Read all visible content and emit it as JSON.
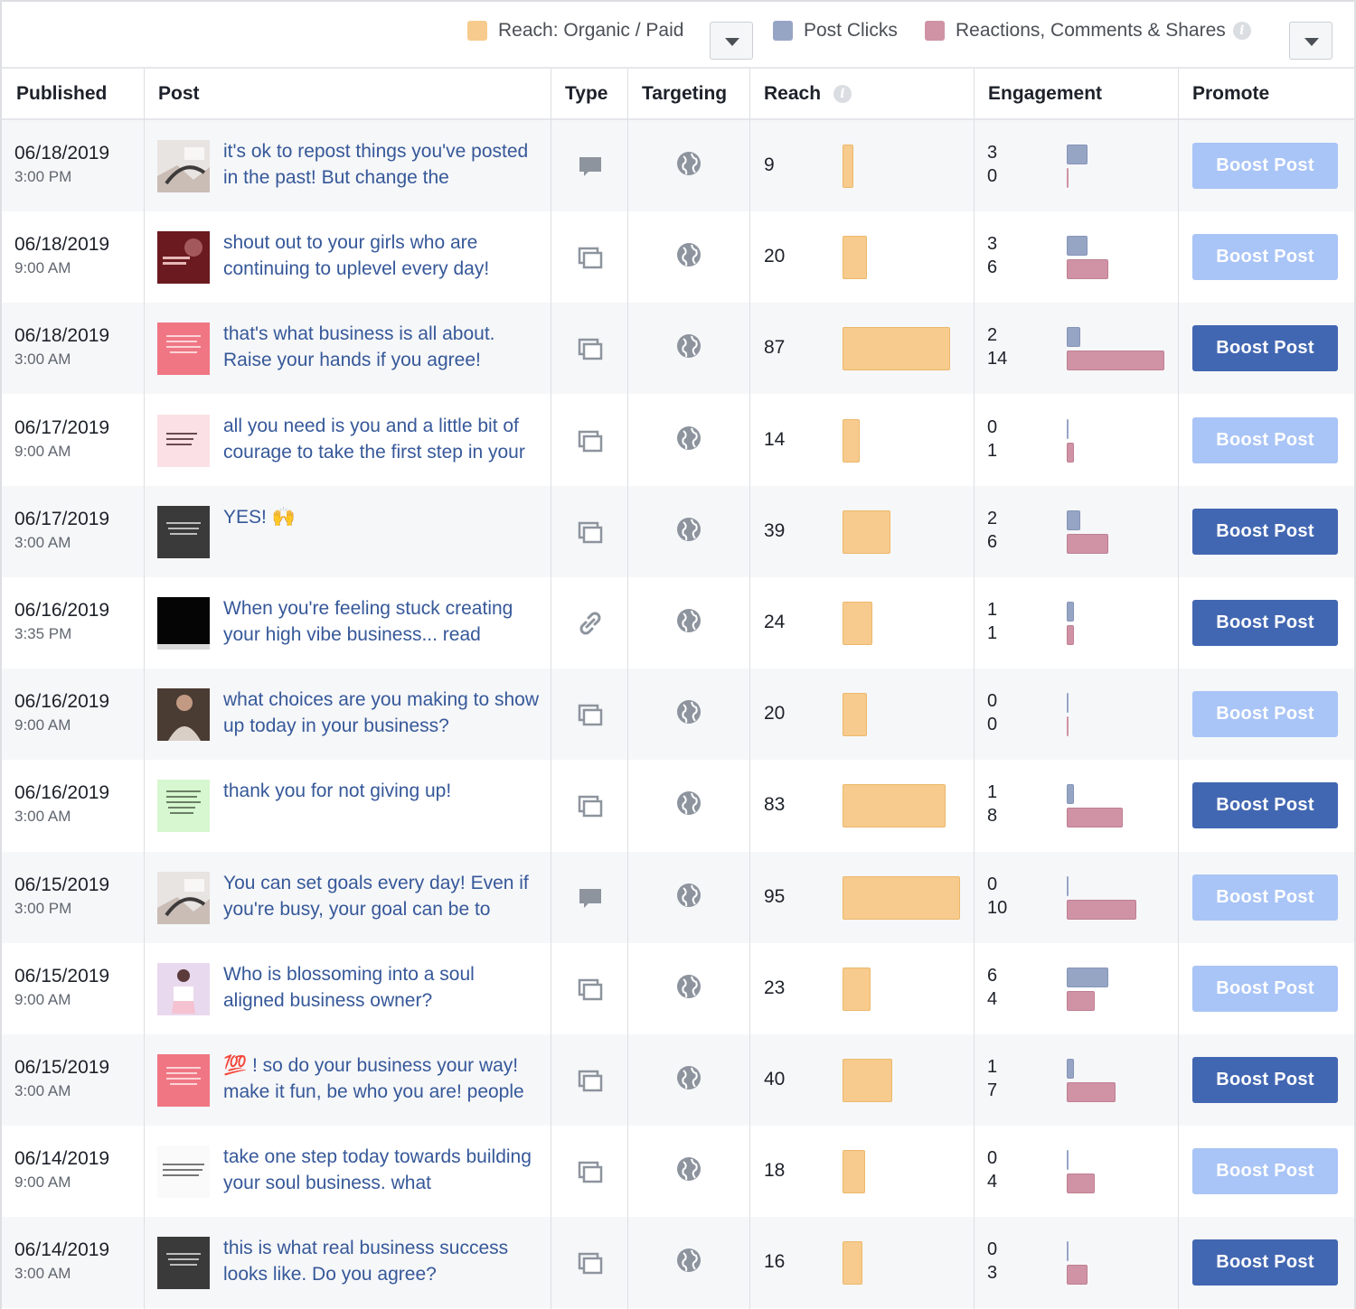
{
  "legend": {
    "reach_label": "Reach: Organic / Paid",
    "clicks_label": "Post Clicks",
    "reactions_label": "Reactions, Comments & Shares",
    "colors": {
      "reach": "#f7cb8d",
      "clicks": "#97a5c5",
      "reactions": "#cf93a5"
    }
  },
  "columns": {
    "published": "Published",
    "post": "Post",
    "type": "Type",
    "targeting": "Targeting",
    "reach": "Reach",
    "engagement": "Engagement",
    "promote": "Promote"
  },
  "rows": [
    {
      "date": "06/18/2019",
      "time": "3:00 PM",
      "text": "it's ok to repost things you've posted in the past! But change the",
      "type": "status-icon",
      "thumb": "photo",
      "reach": 9,
      "clicks": 3,
      "reactions": 0,
      "boost": "Boost Post",
      "boost_enabled": false
    },
    {
      "date": "06/18/2019",
      "time": "9:00 AM",
      "text": "shout out to your girls who are continuing to uplevel every day!",
      "type": "album-icon",
      "thumb": "red",
      "reach": 20,
      "clicks": 3,
      "reactions": 6,
      "boost": "Boost Post",
      "boost_enabled": false
    },
    {
      "date": "06/18/2019",
      "time": "3:00 AM",
      "text": "that's what business is all about. Raise your hands if you agree!",
      "type": "album-icon",
      "thumb": "pink",
      "reach": 87,
      "clicks": 2,
      "reactions": 14,
      "boost": "Boost Post",
      "boost_enabled": true
    },
    {
      "date": "06/17/2019",
      "time": "9:00 AM",
      "text": "all you need is you and a little bit of courage to take the first step in your",
      "type": "album-icon",
      "thumb": "lightpink",
      "reach": 14,
      "clicks": 0,
      "reactions": 1,
      "boost": "Boost Post",
      "boost_enabled": false
    },
    {
      "date": "06/17/2019",
      "time": "3:00 AM",
      "text": "YES! 🙌",
      "type": "album-icon",
      "thumb": "dark",
      "reach": 39,
      "clicks": 2,
      "reactions": 6,
      "boost": "Boost Post",
      "boost_enabled": true
    },
    {
      "date": "06/16/2019",
      "time": "3:35 PM",
      "text": "When you're feeling stuck creating your high vibe business... read",
      "type": "link-icon",
      "thumb": "black",
      "reach": 24,
      "clicks": 1,
      "reactions": 1,
      "boost": "Boost Post",
      "boost_enabled": true
    },
    {
      "date": "06/16/2019",
      "time": "9:00 AM",
      "text": "what choices are you making to show up today in your business?",
      "type": "album-icon",
      "thumb": "brown",
      "reach": 20,
      "clicks": 0,
      "reactions": 0,
      "boost": "Boost Post",
      "boost_enabled": false
    },
    {
      "date": "06/16/2019",
      "time": "3:00 AM",
      "text": "thank you for not giving up!",
      "type": "album-icon",
      "thumb": "green",
      "reach": 83,
      "clicks": 1,
      "reactions": 8,
      "boost": "Boost Post",
      "boost_enabled": true
    },
    {
      "date": "06/15/2019",
      "time": "3:00 PM",
      "text": "You can set goals every day! Even if you're busy, your goal can be to",
      "type": "status-icon",
      "thumb": "photo",
      "reach": 95,
      "clicks": 0,
      "reactions": 10,
      "boost": "Boost Post",
      "boost_enabled": false
    },
    {
      "date": "06/15/2019",
      "time": "9:00 AM",
      "text": "Who is blossoming into a soul aligned business owner?",
      "type": "album-icon",
      "thumb": "lilac",
      "reach": 23,
      "clicks": 6,
      "reactions": 4,
      "boost": "Boost Post",
      "boost_enabled": false
    },
    {
      "date": "06/15/2019",
      "time": "3:00 AM",
      "text": "💯 ! so do your business your way! make it fun, be who you are! people",
      "type": "album-icon",
      "thumb": "pink",
      "reach": 40,
      "clicks": 1,
      "reactions": 7,
      "boost": "Boost Post",
      "boost_enabled": true
    },
    {
      "date": "06/14/2019",
      "time": "9:00 AM",
      "text": "take one step today towards building your soul business. what",
      "type": "album-icon",
      "thumb": "white",
      "reach": 18,
      "clicks": 0,
      "reactions": 4,
      "boost": "Boost Post",
      "boost_enabled": false
    },
    {
      "date": "06/14/2019",
      "time": "3:00 AM",
      "text": "this is what real business success looks like. Do you agree?",
      "type": "album-icon",
      "thumb": "dark",
      "reach": 16,
      "clicks": 0,
      "reactions": 3,
      "boost": "Boost Post",
      "boost_enabled": true
    }
  ]
}
